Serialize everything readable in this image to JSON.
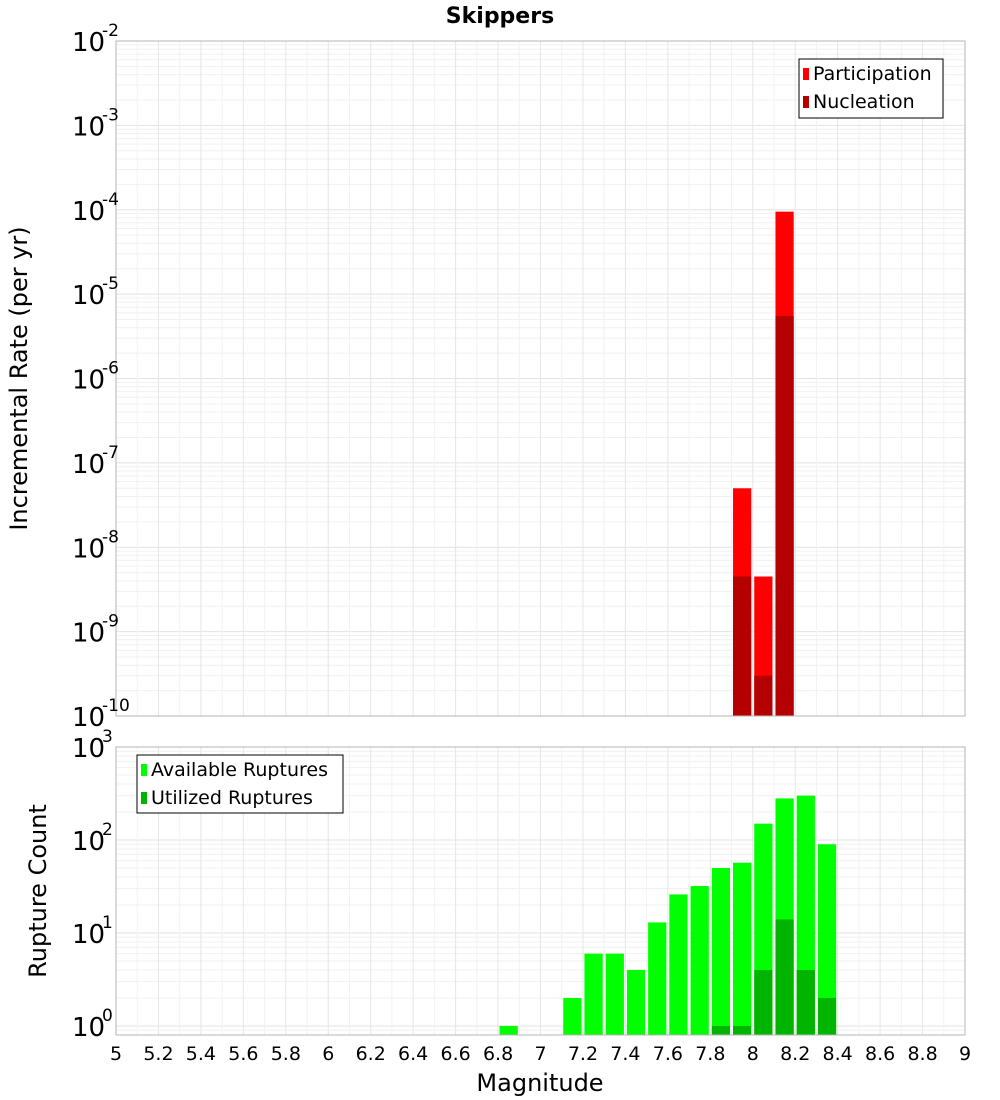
{
  "chart_data": {
    "title": "Skippers",
    "xlabel": "Magnitude",
    "xlim": [
      5,
      9
    ],
    "xticks": [
      "5",
      "5.2",
      "5.4",
      "5.6",
      "5.8",
      "6",
      "6.2",
      "6.4",
      "6.6",
      "6.8",
      "7",
      "7.2",
      "7.4",
      "7.6",
      "7.8",
      "8",
      "8.2",
      "8.4",
      "8.6",
      "8.8",
      "9"
    ],
    "bin_width": 0.1,
    "grid": true,
    "panels": [
      {
        "type": "bar",
        "scale": "log",
        "ylabel": "Incremental Rate (per yr)",
        "ylim_exponents": [
          -10,
          -2
        ],
        "legend": {
          "position": "top-right"
        },
        "series": [
          {
            "name": "Participation",
            "color": "#ff0000",
            "x": [
              7.95,
              8.05,
              8.15
            ],
            "values": [
              5e-08,
              4.5e-09,
              9.5e-05
            ]
          },
          {
            "name": "Nucleation",
            "color": "#b40000",
            "x": [
              7.95,
              8.05,
              8.15
            ],
            "values": [
              4.5e-09,
              3e-10,
              5.5e-06
            ]
          }
        ]
      },
      {
        "type": "bar",
        "scale": "log",
        "ylabel": "Rupture Count",
        "ylim_exponents": [
          0,
          3
        ],
        "ymin": 0.8,
        "legend": {
          "position": "top-left"
        },
        "series": [
          {
            "name": "Available Ruptures",
            "color": "#00ff00",
            "x": [
              6.85,
              7.15,
              7.25,
              7.35,
              7.45,
              7.55,
              7.65,
              7.75,
              7.85,
              7.95,
              8.05,
              8.15,
              8.25,
              8.35
            ],
            "values": [
              1,
              2,
              6,
              6,
              4,
              13,
              26,
              32,
              50,
              57,
              150,
              280,
              300,
              90
            ]
          },
          {
            "name": "Utilized Ruptures",
            "color": "#00b400",
            "x": [
              7.85,
              7.95,
              8.05,
              8.15,
              8.25,
              8.35
            ],
            "values": [
              1,
              1,
              4,
              14,
              4,
              2
            ]
          }
        ]
      }
    ]
  }
}
